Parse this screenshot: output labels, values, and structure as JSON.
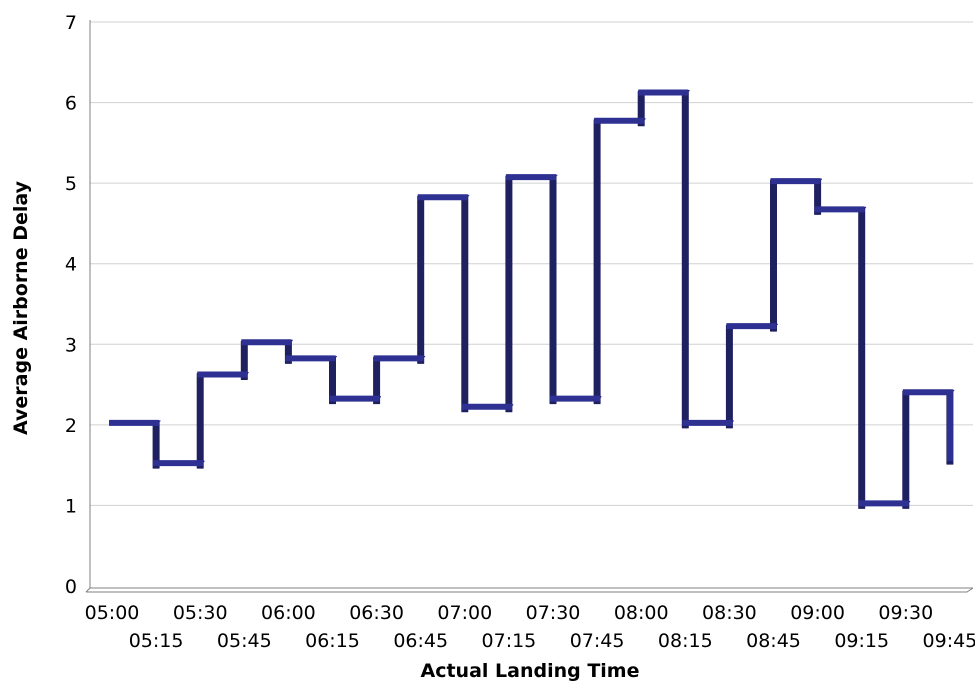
{
  "chart_data": {
    "type": "line",
    "step": true,
    "three_d": true,
    "title": "",
    "xlabel": "Actual Landing Time",
    "ylabel": "Average Airborne Delay",
    "ylim": [
      0,
      7
    ],
    "yticks": [
      "0",
      "1",
      "2",
      "3",
      "4",
      "5",
      "6",
      "7"
    ],
    "grid": true,
    "legend": "none",
    "series_color": "#2e3192",
    "series_shadow_color": "#1f2060",
    "x": [
      "05:00",
      "05:15",
      "05:30",
      "05:45",
      "06:00",
      "06:15",
      "06:30",
      "06:45",
      "07:00",
      "07:15",
      "07:30",
      "07:45",
      "08:00",
      "08:15",
      "08:30",
      "08:45",
      "09:00",
      "09:15",
      "09:30",
      "09:45"
    ],
    "values": [
      2.0,
      1.5,
      2.6,
      3.0,
      2.8,
      2.3,
      2.8,
      4.8,
      2.2,
      5.05,
      2.3,
      5.75,
      6.1,
      2.0,
      3.2,
      5.0,
      4.65,
      1.0,
      2.38,
      1.55
    ],
    "xtick_labels_row1": [
      "05:00",
      "05:30",
      "06:00",
      "06:30",
      "07:00",
      "07:30",
      "08:00",
      "08:30",
      "09:00",
      "09:30"
    ],
    "xtick_labels_row2": [
      "05:15",
      "05:45",
      "06:15",
      "06:45",
      "07:15",
      "07:45",
      "08:15",
      "08:45",
      "09:15",
      "09:45"
    ]
  }
}
